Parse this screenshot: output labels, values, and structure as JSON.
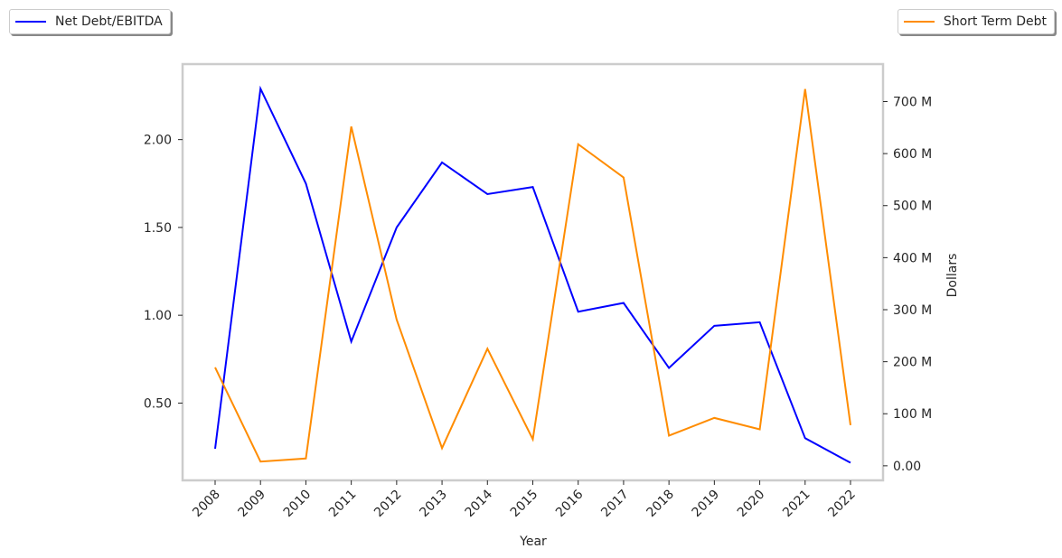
{
  "chart_data": {
    "type": "line",
    "xlabel": "Year",
    "ylabel_left": "",
    "ylabel_right": "Dollars",
    "categories": [
      "2008",
      "2009",
      "2010",
      "2011",
      "2012",
      "2013",
      "2014",
      "2015",
      "2016",
      "2017",
      "2018",
      "2019",
      "2020",
      "2021",
      "2022"
    ],
    "left_ticks": [
      "0.50",
      "1.00",
      "1.50",
      "2.00"
    ],
    "left_tick_values": [
      0.5,
      1.0,
      1.5,
      2.0
    ],
    "right_ticks": [
      "0.00",
      "100 M",
      "200 M",
      "300 M",
      "400 M",
      "500 M",
      "600 M",
      "700 M"
    ],
    "right_tick_values": [
      0,
      100,
      200,
      300,
      400,
      500,
      600,
      700
    ],
    "ylim_left": [
      0.06,
      2.43
    ],
    "ylim_right": [
      -28,
      772
    ],
    "grid": false,
    "series": [
      {
        "name": "Net Debt/EBITDA",
        "axis": "left",
        "color": "#0000ff",
        "legend": "top-left",
        "values": [
          0.24,
          2.29,
          1.75,
          0.85,
          1.5,
          1.87,
          1.69,
          1.73,
          1.02,
          1.07,
          0.7,
          0.94,
          0.96,
          0.3,
          0.16
        ]
      },
      {
        "name": "Short Term Debt",
        "axis": "right",
        "color": "#ff8c00",
        "legend": "top-right",
        "unit": "M",
        "values": [
          189,
          8,
          14,
          652,
          281,
          34,
          225,
          51,
          618,
          554,
          58,
          92,
          70,
          724,
          78
        ]
      }
    ]
  }
}
